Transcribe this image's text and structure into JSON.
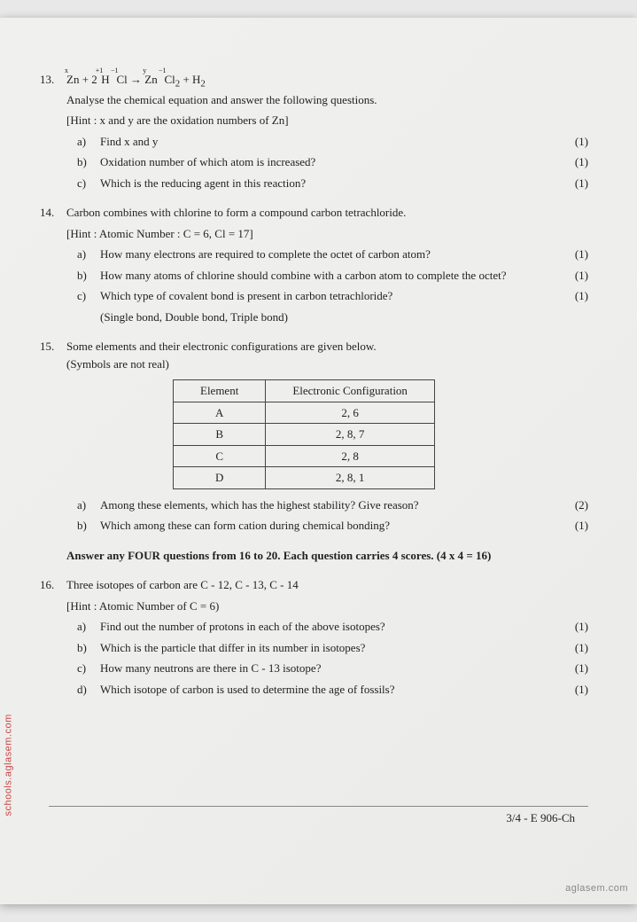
{
  "q13": {
    "num": "13.",
    "equation_html": "Z&#8319; + 2H&#8239;Cl → Zn&#8239;Cl₂ + H₂",
    "line1": "Analyse the chemical equation and answer the following questions.",
    "hint": "[Hint : x and y are the oxidation numbers of Zn]",
    "a": "Find x and y",
    "am": "(1)",
    "b": "Oxidation number of which atom is increased?",
    "bm": "(1)",
    "c": "Which is the reducing agent in this reaction?",
    "cm": "(1)"
  },
  "q14": {
    "num": "14.",
    "line1": "Carbon combines with chlorine to form a compound carbon tetrachloride.",
    "hint": "[Hint : Atomic Number : C = 6, Cl = 17]",
    "a": "How many electrons are required to complete the octet of carbon atom?",
    "am": "(1)",
    "b": "How many atoms of chlorine should combine with a carbon atom to complete the octet?",
    "bm": "(1)",
    "c": "Which type of covalent bond is present in carbon tetrachloride?",
    "cm": "(1)",
    "cnote": "(Single bond, Double bond, Triple bond)"
  },
  "q15": {
    "num": "15.",
    "line1": "Some elements and their electronic configurations are given below.",
    "line2": "(Symbols are not real)",
    "table": {
      "h1": "Element",
      "h2": "Electronic Configuration",
      "rows": [
        {
          "e": "A",
          "c": "2, 6"
        },
        {
          "e": "B",
          "c": "2, 8, 7"
        },
        {
          "e": "C",
          "c": "2, 8"
        },
        {
          "e": "D",
          "c": "2, 8, 1"
        }
      ]
    },
    "a": "Among these elements, which has the highest stability? Give reason?",
    "am": "(2)",
    "b": "Which among these can form cation during chemical bonding?",
    "bm": "(1)"
  },
  "section": "Answer any FOUR questions from 16 to 20. Each question carries 4 scores.  (4 x 4 = 16)",
  "q16": {
    "num": "16.",
    "line1": "Three isotopes of carbon are C - 12, C - 13, C - 14",
    "hint": "[Hint : Atomic Number of C = 6)",
    "a": "Find out the number of protons in each of the above isotopes?",
    "am": "(1)",
    "b": "Which is the particle that differ in its number in isotopes?",
    "bm": "(1)",
    "c": "How many neutrons are there in C - 13 isotope?",
    "cm": "(1)",
    "d": "Which isotope of carbon is used to determine the age of fossils?",
    "dm": "(1)"
  },
  "footer": "3/4 - E 906-Ch",
  "wm_left": "schools.aglasem.com",
  "wm_right": "aglasem.com"
}
